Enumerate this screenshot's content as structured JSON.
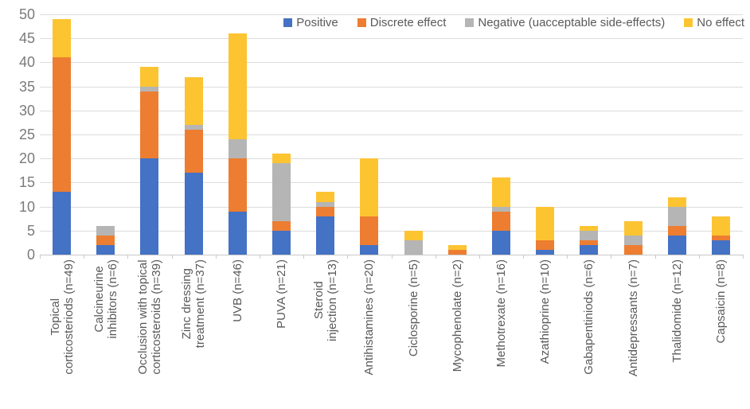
{
  "chart_data": {
    "type": "bar",
    "stacked": true,
    "title": "",
    "xlabel": "",
    "ylabel": "",
    "ylim": [
      0,
      50
    ],
    "ytick_step": 5,
    "yticks": [
      "0",
      "5",
      "10",
      "15",
      "20",
      "25",
      "30",
      "35",
      "40",
      "45",
      "50"
    ],
    "grid": true,
    "legend_position": "top-right",
    "categories": [
      "Topical\ncorticosteriods (n=49)",
      "Calcineurine\ninhibitors (n=6)",
      "Occlusion with topical\ncorticosteroids (n=39)",
      "Zinc dressing\ntreatment (n=37)",
      "UVB (n=46)",
      "PUVA (n=21)",
      "Steroid\ninjection (n=13)",
      "Antihistamines (n=20)",
      "Ciclosporine (n=5)",
      "Mycophenolate (n=2)",
      "Methotrexate (n=16)",
      "Azathioprine (n=10)",
      "Gabapentiniods (n=6)",
      "Antidepressants (n=7)",
      "Thalidomide (n=12)",
      "Capsaicin (n=8)"
    ],
    "series": [
      {
        "name": "Positive",
        "color": "#4472C4",
        "values": [
          13,
          2,
          20,
          17,
          9,
          5,
          8,
          2,
          0,
          0,
          5,
          1,
          2,
          0,
          4,
          3
        ]
      },
      {
        "name": "Discrete effect",
        "color": "#ED7D31",
        "values": [
          28,
          2,
          14,
          9,
          11,
          2,
          2,
          6,
          0,
          1,
          4,
          2,
          1,
          2,
          2,
          1
        ]
      },
      {
        "name": "Negative (uacceptable side-effects)",
        "color": "#B5B5B5",
        "values": [
          0,
          2,
          1,
          1,
          4,
          12,
          1,
          0,
          3,
          0,
          1,
          0,
          2,
          2,
          4,
          0
        ]
      },
      {
        "name": "No effect",
        "color": "#FDC432",
        "values": [
          8,
          0,
          4,
          10,
          22,
          2,
          2,
          12,
          2,
          1,
          6,
          7,
          1,
          3,
          2,
          4
        ]
      }
    ]
  }
}
